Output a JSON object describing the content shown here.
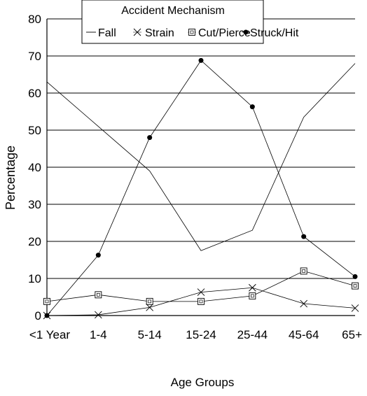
{
  "chart_data": {
    "type": "line",
    "title": "",
    "xlabel": "Age Groups",
    "ylabel": "Percentage",
    "categories": [
      "<1 Year",
      "1-4",
      "5-14",
      "15-24",
      "25-44",
      "45-64",
      "65+"
    ],
    "ylim": [
      0,
      80
    ],
    "yticks": [
      0,
      10,
      20,
      30,
      40,
      50,
      60,
      70,
      80
    ],
    "grid": true,
    "legend": {
      "title": "Accident Mechanism",
      "placement": "top-center",
      "entries": [
        "Fall",
        "Strain",
        "Cut/Pierce",
        "Struck/Hit"
      ]
    },
    "series": [
      {
        "name": "Fall",
        "marker": "none",
        "values": [
          63,
          51,
          39,
          17.5,
          23,
          53.5,
          68
        ]
      },
      {
        "name": "Strain",
        "marker": "x",
        "values": [
          0,
          0.2,
          2.2,
          6.3,
          7.5,
          3.2,
          2
        ]
      },
      {
        "name": "Cut/Pierce",
        "marker": "square",
        "values": [
          3.8,
          5.6,
          3.8,
          3.8,
          5.3,
          12,
          8
        ]
      },
      {
        "name": "Struck/Hit",
        "marker": "dot",
        "values": [
          0,
          16.3,
          48,
          68.8,
          56.3,
          21.3,
          10.5
        ]
      }
    ]
  }
}
